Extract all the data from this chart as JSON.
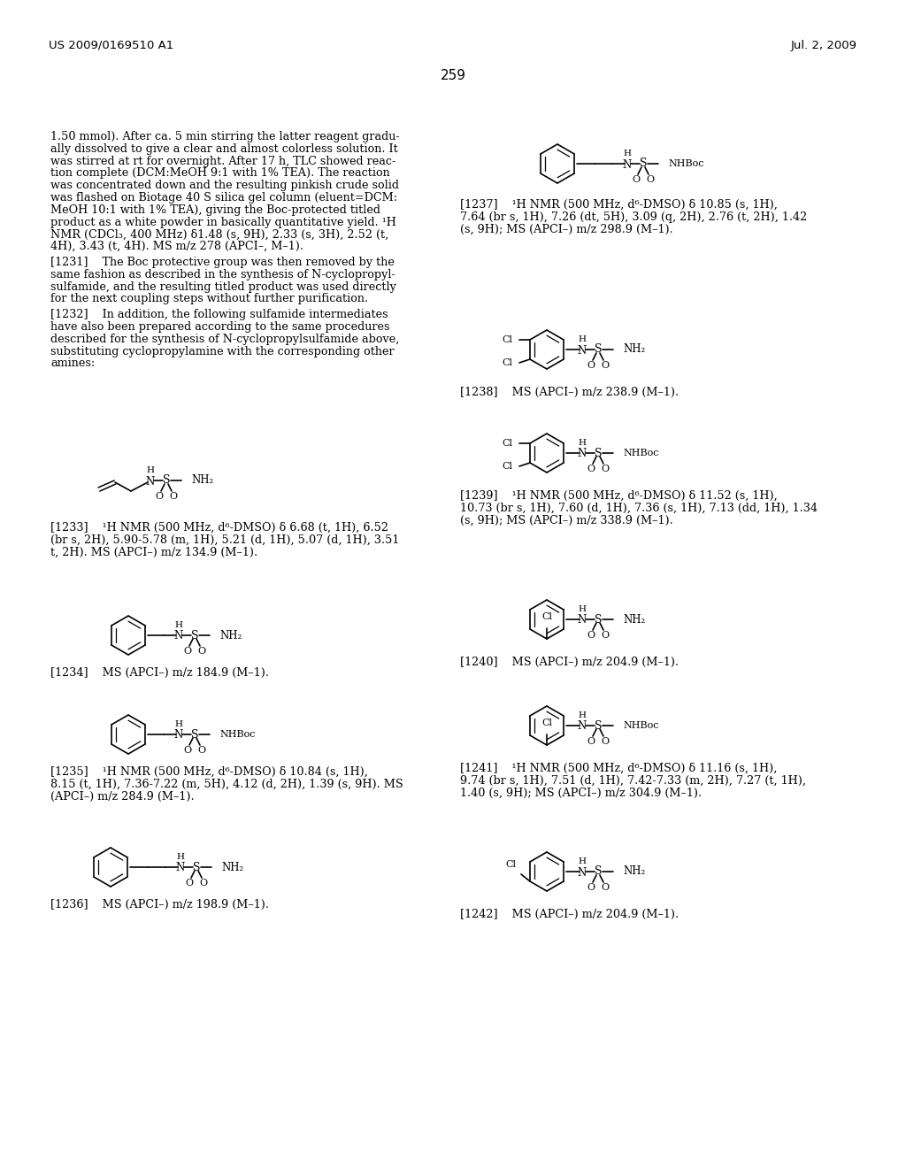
{
  "bg_color": "#ffffff",
  "header_left": "US 2009/0169510 A1",
  "header_right": "Jul. 2, 2009",
  "page_number": "259",
  "main_text_lines": [
    "1.50 mmol). After ca. 5 min stirring the latter reagent gradu-",
    "ally dissolved to give a clear and almost colorless solution. It",
    "was stirred at rt for overnight. After 17 h, TLC showed reac-",
    "tion complete (DCM:MeOH 9:1 with 1% TEA). The reaction",
    "was concentrated down and the resulting pinkish crude solid",
    "was flashed on Biotage 40 S silica gel column (eluent=DCM:",
    "MeOH 10:1 with 1% TEA), giving the Boc-protected titled",
    "product as a white powder in basically quantitative yield. ¹H",
    "NMR (CDCl₃, 400 MHz) δ1.48 (s, 9H), 2.33 (s, 3H), 2.52 (t,",
    "4H), 3.43 (t, 4H). MS m/z 278 (APCI–, M–1)."
  ],
  "para1231_lines": [
    "[1231]    The Boc protective group was then removed by the",
    "same fashion as described in the synthesis of N-cyclopropyl-",
    "sulfamide, and the resulting titled product was used directly",
    "for the next coupling steps without further purification."
  ],
  "para1232_lines": [
    "[1232]    In addition, the following sulfamide intermediates",
    "have also been prepared according to the same procedures",
    "described for the synthesis of N-cyclopropylsulfamide above,",
    "substituting cyclopropylamine with the corresponding other",
    "amines:"
  ],
  "cap1233_lines": [
    "[1233]    ¹H NMR (500 MHz, d⁶-DMSO) δ 6.68 (t, 1H), 6.52",
    "(br s, 2H), 5.90-5.78 (m, 1H), 5.21 (d, 1H), 5.07 (d, 1H), 3.51",
    "t, 2H). MS (APCI–) m/z 134.9 (M–1)."
  ],
  "cap1234": "[1234]    MS (APCI–) m/z 184.9 (M–1).",
  "cap1235_lines": [
    "[1235]    ¹H NMR (500 MHz, d⁶-DMSO) δ 10.84 (s, 1H),",
    "8.15 (t, 1H), 7.36-7.22 (m, 5H), 4.12 (d, 2H), 1.39 (s, 9H). MS",
    "(APCI–) m/z 284.9 (M–1)."
  ],
  "cap1236": "[1236]    MS (APCI–) m/z 198.9 (M–1).",
  "cap1237_lines": [
    "[1237]    ¹H NMR (500 MHz, d⁶-DMSO) δ 10.85 (s, 1H),",
    "7.64 (br s, 1H), 7.26 (dt, 5H), 3.09 (q, 2H), 2.76 (t, 2H), 1.42",
    "(s, 9H); MS (APCI–) m/z 298.9 (M–1)."
  ],
  "cap1238": "[1238]    MS (APCI–) m/z 238.9 (M–1).",
  "cap1239_lines": [
    "[1239]    ¹H NMR (500 MHz, d⁶-DMSO) δ 11.52 (s, 1H),",
    "10.73 (br s, 1H), 7.60 (d, 1H), 7.36 (s, 1H), 7.13 (dd, 1H), 1.34",
    "(s, 9H); MS (APCI–) m/z 338.9 (M–1)."
  ],
  "cap1240": "[1240]    MS (APCI–) m/z 204.9 (M–1).",
  "cap1241_lines": [
    "[1241]    ¹H NMR (500 MHz, d⁶-DMSO) δ 11.16 (s, 1H),",
    "9.74 (br s, 1H), 7.51 (d, 1H), 7.42-7.33 (m, 2H), 7.27 (t, 1H),",
    "1.40 (s, 9H); MS (APCI–) m/z 304.9 (M–1)."
  ],
  "cap1242": "[1242]    MS (APCI–) m/z 204.9 (M–1)."
}
